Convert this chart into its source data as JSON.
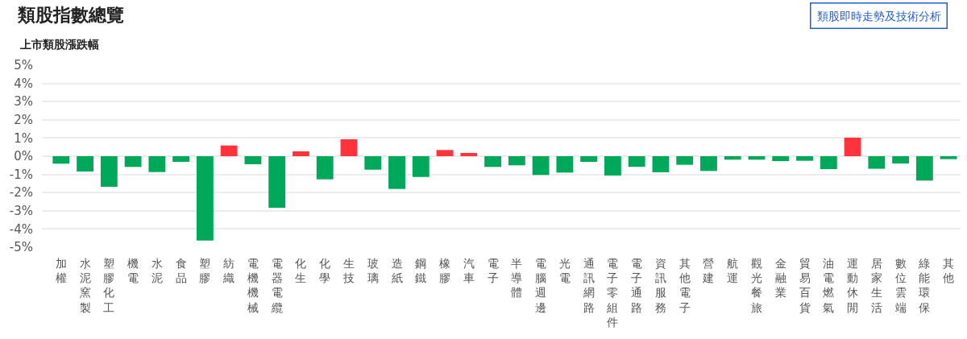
{
  "chart_data": {
    "type": "bar",
    "title": "類股指數總覽",
    "subtitle": "上市類股漲跌幅",
    "annotations": [
      "類股即時走勢及技術分析"
    ],
    "categories": [
      "加權",
      "水泥窯製",
      "塑膠化工",
      "機電",
      "水泥",
      "食品",
      "塑膠",
      "紡織",
      "電機機械",
      "電器電纜",
      "化生",
      "化學",
      "生技",
      "玻璃",
      "造紙",
      "鋼鐵",
      "橡膠",
      "汽車",
      "電子",
      "半導體",
      "電腦週邊",
      "光電",
      "通訊網路",
      "電子零組件",
      "電子通路",
      "資訊服務",
      "其他電子",
      "營建",
      "航運",
      "觀光餐旅",
      "金融業",
      "貿易百貨",
      "油電燃氣",
      "運動休閒",
      "居家生活",
      "數位雲端",
      "綠能環保",
      "其他"
    ],
    "values": [
      -0.41,
      -0.84,
      -1.68,
      -0.59,
      -0.87,
      -0.31,
      -4.63,
      0.59,
      -0.44,
      -2.83,
      0.27,
      -1.27,
      0.93,
      -0.74,
      -1.8,
      -1.14,
      0.34,
      0.18,
      -0.59,
      -0.5,
      -1.03,
      -0.9,
      -0.31,
      -1.06,
      -0.58,
      -0.88,
      -0.47,
      -0.81,
      -0.19,
      -0.19,
      -0.27,
      -0.25,
      -0.71,
      1.02,
      -0.69,
      -0.4,
      -1.34,
      -0.16
    ],
    "colors": [
      "#00a85a",
      "#00a85a",
      "#00a85a",
      "#00a85a",
      "#00a85a",
      "#00a85a",
      "#00a85a",
      "#ff333c",
      "#00a85a",
      "#00a85a",
      "#ff333c",
      "#00a85a",
      "#ff333c",
      "#00a85a",
      "#00a85a",
      "#00a85a",
      "#ff333c",
      "#ff333c",
      "#00a85a",
      "#00a85a",
      "#00a85a",
      "#00a85a",
      "#00a85a",
      "#00a85a",
      "#00a85a",
      "#00a85a",
      "#00a85a",
      "#00a85a",
      "#00a85a",
      "#00a85a",
      "#00a85a",
      "#00a85a",
      "#00a85a",
      "#ff333c",
      "#00a85a",
      "#00a85a",
      "#00a85a",
      "#00a85a"
    ],
    "ylim": [
      -5,
      5
    ],
    "yticks": [
      {
        "value": 5,
        "label": "5%"
      },
      {
        "value": 4,
        "label": "4%"
      },
      {
        "value": 3,
        "label": "3%"
      },
      {
        "value": 2,
        "label": "2%"
      },
      {
        "value": 1,
        "label": "1%"
      },
      {
        "value": 0,
        "label": "0%"
      },
      {
        "value": -1,
        "label": "-1%"
      },
      {
        "value": -2,
        "label": "-2%"
      },
      {
        "value": -3,
        "label": "-3%"
      },
      {
        "value": -4,
        "label": "-4%"
      },
      {
        "value": -5,
        "label": "-5%"
      }
    ],
    "grid": "y"
  }
}
